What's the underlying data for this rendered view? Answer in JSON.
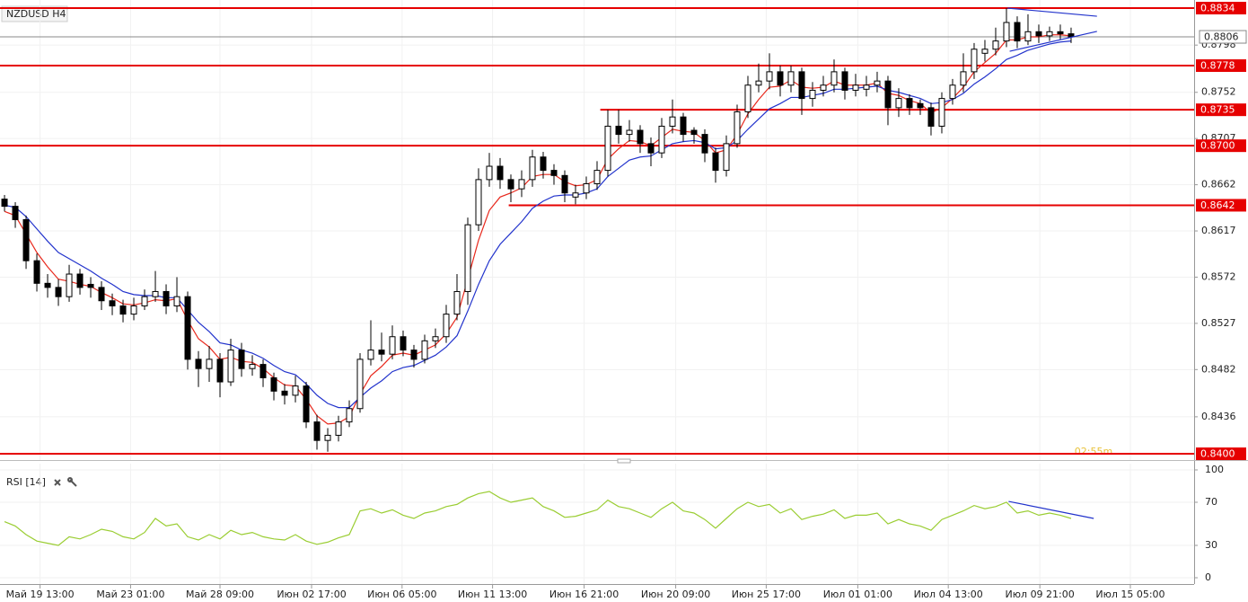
{
  "chart_data": {
    "type": "candlestick",
    "title": "NZDUSD H4",
    "xlim": [
      -0.42,
      110.42
    ],
    "xticks": [
      {
        "value": 3.3,
        "label": "Май 19 13:00"
      },
      {
        "value": 11.7,
        "label": "Май 23 01:00"
      },
      {
        "value": 20,
        "label": "Май 28 09:00"
      },
      {
        "value": 28.5,
        "label": "Июн 02 17:00"
      },
      {
        "value": 36.9,
        "label": "Июн 06 05:00"
      },
      {
        "value": 45.3,
        "label": "Июн 11 13:00"
      },
      {
        "value": 53.8,
        "label": "Июн 16 21:00"
      },
      {
        "value": 62.3,
        "label": "Июн 20 09:00"
      },
      {
        "value": 70.7,
        "label": "Июн 25 17:00"
      },
      {
        "value": 79.2,
        "label": "Июл 01 01:00"
      },
      {
        "value": 87.6,
        "label": "Июл 04 13:00"
      },
      {
        "value": 96.1,
        "label": "Июл 09 21:00"
      },
      {
        "value": 104.5,
        "label": "Июл 15 05:00"
      }
    ],
    "ylim": [
      0.83939,
      0.88419
    ],
    "yticks": [
      0.8798,
      0.8752,
      0.8707,
      0.8662,
      0.8617,
      0.8572,
      0.8527,
      0.8482,
      0.8436
    ],
    "grid": true,
    "up_color": "#ffffff",
    "down_color": "#000000",
    "candles": [
      [
        0.8648,
        0.8652,
        0.8636,
        0.8641
      ],
      [
        0.8641,
        0.8645,
        0.862,
        0.8628
      ],
      [
        0.8628,
        0.8632,
        0.858,
        0.8588
      ],
      [
        0.8588,
        0.8595,
        0.8558,
        0.8566
      ],
      [
        0.8566,
        0.8575,
        0.8552,
        0.8562
      ],
      [
        0.8562,
        0.857,
        0.8544,
        0.8553
      ],
      [
        0.8553,
        0.8584,
        0.8548,
        0.8575
      ],
      [
        0.8575,
        0.858,
        0.8555,
        0.8562
      ],
      [
        0.8565,
        0.8572,
        0.8552,
        0.8562
      ],
      [
        0.8562,
        0.8568,
        0.854,
        0.8549
      ],
      [
        0.8549,
        0.8556,
        0.8535,
        0.8544
      ],
      [
        0.8544,
        0.855,
        0.8528,
        0.8536
      ],
      [
        0.8536,
        0.8552,
        0.853,
        0.8544
      ],
      [
        0.8544,
        0.856,
        0.854,
        0.8553
      ],
      [
        0.8553,
        0.8578,
        0.8548,
        0.8558
      ],
      [
        0.8558,
        0.8565,
        0.8536,
        0.8544
      ],
      [
        0.8544,
        0.8572,
        0.8538,
        0.8553
      ],
      [
        0.8553,
        0.8558,
        0.8482,
        0.8492
      ],
      [
        0.8492,
        0.85,
        0.8465,
        0.8483
      ],
      [
        0.8483,
        0.8505,
        0.847,
        0.8492
      ],
      [
        0.8492,
        0.8498,
        0.8455,
        0.847
      ],
      [
        0.847,
        0.8512,
        0.8466,
        0.8501
      ],
      [
        0.8501,
        0.8508,
        0.8475,
        0.8483
      ],
      [
        0.8483,
        0.8496,
        0.8476,
        0.8487
      ],
      [
        0.8487,
        0.8492,
        0.8465,
        0.8474
      ],
      [
        0.8474,
        0.8479,
        0.8452,
        0.8461
      ],
      [
        0.8461,
        0.8468,
        0.8448,
        0.8457
      ],
      [
        0.8457,
        0.8476,
        0.845,
        0.8466
      ],
      [
        0.8466,
        0.847,
        0.8425,
        0.8431
      ],
      [
        0.8431,
        0.8438,
        0.8404,
        0.8413
      ],
      [
        0.8413,
        0.8425,
        0.8402,
        0.8418
      ],
      [
        0.8418,
        0.8437,
        0.8412,
        0.8431
      ],
      [
        0.8431,
        0.8452,
        0.8426,
        0.8444
      ],
      [
        0.8444,
        0.8498,
        0.844,
        0.8492
      ],
      [
        0.8492,
        0.853,
        0.8486,
        0.8501
      ],
      [
        0.8501,
        0.8518,
        0.849,
        0.8497
      ],
      [
        0.8497,
        0.8525,
        0.8492,
        0.8514
      ],
      [
        0.8514,
        0.852,
        0.8495,
        0.8501
      ],
      [
        0.8501,
        0.8506,
        0.8484,
        0.8492
      ],
      [
        0.8492,
        0.8516,
        0.8488,
        0.851
      ],
      [
        0.851,
        0.8522,
        0.8503,
        0.8514
      ],
      [
        0.8514,
        0.8545,
        0.8508,
        0.8536
      ],
      [
        0.8536,
        0.8575,
        0.853,
        0.8558
      ],
      [
        0.8558,
        0.863,
        0.8545,
        0.8623
      ],
      [
        0.8623,
        0.8678,
        0.8617,
        0.8667
      ],
      [
        0.8667,
        0.8693,
        0.866,
        0.868
      ],
      [
        0.868,
        0.8688,
        0.8658,
        0.8667
      ],
      [
        0.8667,
        0.8672,
        0.8645,
        0.8658
      ],
      [
        0.8658,
        0.8676,
        0.865,
        0.8667
      ],
      [
        0.8667,
        0.8696,
        0.866,
        0.8689
      ],
      [
        0.8689,
        0.8694,
        0.8668,
        0.8676
      ],
      [
        0.8676,
        0.8682,
        0.8662,
        0.8671
      ],
      [
        0.8671,
        0.8676,
        0.8645,
        0.8654
      ],
      [
        0.865,
        0.8662,
        0.8643,
        0.8654
      ],
      [
        0.8654,
        0.867,
        0.8648,
        0.8663
      ],
      [
        0.8663,
        0.8685,
        0.8657,
        0.8676
      ],
      [
        0.8676,
        0.8735,
        0.867,
        0.8719
      ],
      [
        0.8719,
        0.8735,
        0.8702,
        0.8711
      ],
      [
        0.8711,
        0.8725,
        0.8704,
        0.8715
      ],
      [
        0.8715,
        0.872,
        0.8693,
        0.8702
      ],
      [
        0.8702,
        0.8708,
        0.868,
        0.8693
      ],
      [
        0.8693,
        0.8727,
        0.8688,
        0.8719
      ],
      [
        0.8719,
        0.8745,
        0.8712,
        0.8728
      ],
      [
        0.8728,
        0.8732,
        0.8704,
        0.8711
      ],
      [
        0.8715,
        0.8718,
        0.8702,
        0.8711
      ],
      [
        0.8711,
        0.8716,
        0.8684,
        0.8693
      ],
      [
        0.8693,
        0.8698,
        0.8664,
        0.8676
      ],
      [
        0.8676,
        0.871,
        0.867,
        0.8702
      ],
      [
        0.8702,
        0.874,
        0.8698,
        0.8733
      ],
      [
        0.8733,
        0.8768,
        0.8727,
        0.8759
      ],
      [
        0.8759,
        0.878,
        0.8752,
        0.8763
      ],
      [
        0.8763,
        0.879,
        0.8755,
        0.8772
      ],
      [
        0.8772,
        0.8778,
        0.8748,
        0.8759
      ],
      [
        0.8759,
        0.8778,
        0.8752,
        0.8772
      ],
      [
        0.8772,
        0.8776,
        0.873,
        0.8746
      ],
      [
        0.8746,
        0.8762,
        0.8738,
        0.8754
      ],
      [
        0.8754,
        0.8768,
        0.8748,
        0.8759
      ],
      [
        0.8759,
        0.8784,
        0.8752,
        0.8772
      ],
      [
        0.8772,
        0.8776,
        0.8745,
        0.8754
      ],
      [
        0.8754,
        0.877,
        0.8748,
        0.8759
      ],
      [
        0.8755,
        0.8768,
        0.8748,
        0.8759
      ],
      [
        0.8759,
        0.8772,
        0.8752,
        0.8763
      ],
      [
        0.8763,
        0.8768,
        0.872,
        0.8737
      ],
      [
        0.8737,
        0.8756,
        0.8728,
        0.8746
      ],
      [
        0.8746,
        0.875,
        0.873,
        0.8737
      ],
      [
        0.8741,
        0.8745,
        0.873,
        0.8737
      ],
      [
        0.8737,
        0.8742,
        0.871,
        0.8719
      ],
      [
        0.8719,
        0.8752,
        0.8712,
        0.8746
      ],
      [
        0.8746,
        0.8765,
        0.874,
        0.8759
      ],
      [
        0.8759,
        0.879,
        0.8752,
        0.8772
      ],
      [
        0.8772,
        0.88,
        0.8765,
        0.8794
      ],
      [
        0.879,
        0.8803,
        0.8782,
        0.8794
      ],
      [
        0.8794,
        0.8815,
        0.8788,
        0.8802
      ],
      [
        0.8802,
        0.8834,
        0.8796,
        0.882
      ],
      [
        0.882,
        0.8826,
        0.8795,
        0.8802
      ],
      [
        0.8802,
        0.8828,
        0.8798,
        0.8811
      ],
      [
        0.8811,
        0.8818,
        0.88,
        0.8807
      ],
      [
        0.8807,
        0.8816,
        0.8802,
        0.8811
      ],
      [
        0.8811,
        0.8818,
        0.8803,
        0.8809
      ],
      [
        0.8809,
        0.8815,
        0.88,
        0.8806
      ]
    ],
    "moving_averages": [
      {
        "color": "#e8281c",
        "values": [
          0.8636,
          0.8632,
          0.8614,
          0.8596,
          0.8582,
          0.857,
          0.8568,
          0.8565,
          0.8563,
          0.8557,
          0.8552,
          0.8546,
          0.8545,
          0.8547,
          0.855,
          0.8549,
          0.8551,
          0.853,
          0.8512,
          0.8504,
          0.8492,
          0.8494,
          0.849,
          0.8489,
          0.8483,
          0.8474,
          0.8467,
          0.8466,
          0.8453,
          0.8437,
          0.8429,
          0.843,
          0.8436,
          0.8458,
          0.8476,
          0.8485,
          0.8496,
          0.8498,
          0.8496,
          0.8501,
          0.8506,
          0.8517,
          0.8533,
          0.857,
          0.8608,
          0.8637,
          0.865,
          0.8654,
          0.8659,
          0.867,
          0.8672,
          0.8672,
          0.8665,
          0.8661,
          0.8662,
          0.8667,
          0.8687,
          0.8697,
          0.8705,
          0.8704,
          0.87,
          0.8708,
          0.8716,
          0.8714,
          0.8713,
          0.8705,
          0.8693,
          0.8696,
          0.8711,
          0.8731,
          0.8745,
          0.8757,
          0.8758,
          0.8764,
          0.8757,
          0.8756,
          0.8757,
          0.8763,
          0.8759,
          0.8759,
          0.8759,
          0.8761,
          0.8751,
          0.8749,
          0.8744,
          0.8741,
          0.8732,
          0.8737,
          0.8746,
          0.8757,
          0.8772,
          0.8781,
          0.879,
          0.8803,
          0.8803,
          0.8806,
          0.8806,
          0.8808,
          0.8808,
          0.8807
        ]
      },
      {
        "color": "#2233cc",
        "values": [
          0.8642,
          0.864,
          0.8631,
          0.8619,
          0.8607,
          0.8596,
          0.859,
          0.8584,
          0.8578,
          0.8571,
          0.8565,
          0.8558,
          0.8555,
          0.8554,
          0.8554,
          0.8552,
          0.8552,
          0.854,
          0.8528,
          0.8519,
          0.8508,
          0.8506,
          0.8501,
          0.8498,
          0.8493,
          0.8486,
          0.848,
          0.8477,
          0.8468,
          0.8457,
          0.8449,
          0.8445,
          0.8445,
          0.8455,
          0.8464,
          0.8471,
          0.848,
          0.8484,
          0.8486,
          0.8491,
          0.8496,
          0.8504,
          0.8515,
          0.8539,
          0.8565,
          0.8588,
          0.8604,
          0.8615,
          0.8626,
          0.8639,
          0.8646,
          0.8651,
          0.8652,
          0.8652,
          0.8654,
          0.8658,
          0.867,
          0.8678,
          0.8686,
          0.8689,
          0.869,
          0.8696,
          0.8702,
          0.8704,
          0.8705,
          0.8703,
          0.8697,
          0.8698,
          0.8705,
          0.8716,
          0.8726,
          0.8736,
          0.8741,
          0.8747,
          0.8747,
          0.8749,
          0.8751,
          0.8755,
          0.8755,
          0.8756,
          0.8757,
          0.8758,
          0.8754,
          0.8752,
          0.8749,
          0.8746,
          0.8741,
          0.8742,
          0.8745,
          0.8751,
          0.876,
          0.8767,
          0.8775,
          0.8784,
          0.8788,
          0.8793,
          0.8796,
          0.8799,
          0.8801,
          0.8802
        ]
      }
    ],
    "levels": [
      {
        "value": 0.8834,
        "color": "#e60000"
      },
      {
        "value": 0.8778,
        "color": "#e60000"
      },
      {
        "value": 0.8735,
        "color": "#e60000",
        "from": 55.3
      },
      {
        "value": 0.87,
        "label": "0.8700",
        "color": "#e60000"
      },
      {
        "value": 0.8642,
        "color": "#e60000",
        "from": 46.8
      },
      {
        "value": 0.84,
        "label": "0.8400",
        "color": "#e60000"
      }
    ],
    "current_price": 0.8806,
    "timer": "02:55m",
    "trendlines": [
      {
        "color": "#2233cc",
        "x": [
          93.1,
          101.4
        ],
        "y": [
          0.8834,
          0.88261
        ]
      },
      {
        "color": "#2233cc",
        "x": [
          93.3,
          101.4
        ],
        "y": [
          0.8792,
          0.88113
        ]
      }
    ],
    "rsi": {
      "title": "RSI [14]",
      "color": "#9acd32",
      "ylim": [
        0,
        100
      ],
      "yticks": [
        100,
        70,
        30,
        0
      ],
      "values": [
        52,
        48,
        40,
        34,
        32,
        30,
        38,
        36,
        40,
        45,
        43,
        38,
        36,
        42,
        55,
        48,
        50,
        38,
        35,
        40,
        36,
        44,
        40,
        42,
        38,
        36,
        35,
        40,
        34,
        31,
        33,
        37,
        40,
        62,
        64,
        60,
        63,
        58,
        55,
        60,
        62,
        66,
        68,
        74,
        78,
        80,
        74,
        70,
        72,
        74,
        66,
        62,
        56,
        57,
        60,
        63,
        72,
        66,
        64,
        60,
        56,
        64,
        70,
        62,
        60,
        54,
        46,
        55,
        64,
        70,
        66,
        68,
        60,
        64,
        54,
        57,
        59,
        63,
        55,
        58,
        58,
        60,
        50,
        54,
        50,
        48,
        44,
        54,
        58,
        62,
        67,
        64,
        66,
        70,
        60,
        62,
        58,
        60,
        58,
        55
      ],
      "trendline": {
        "color": "#2233cc",
        "x": [
          93.2,
          101.1
        ],
        "y": [
          70.8,
          55
        ]
      }
    }
  }
}
